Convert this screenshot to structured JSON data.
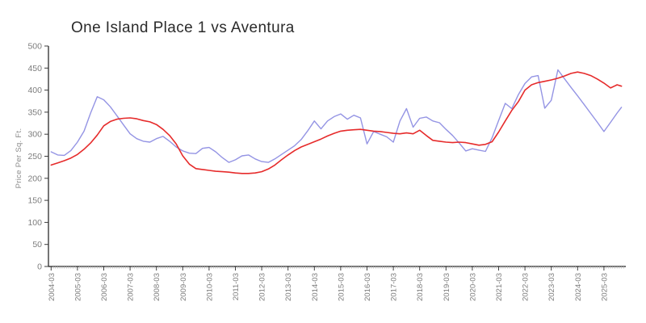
{
  "colors": {
    "series_blue": "#9494e4",
    "series_red": "#e62b2b",
    "axis": "#1a1a1a",
    "tick_major": "#3c3c3c",
    "tick_minor": "#bcbcbc",
    "tick_label": "#7d7d7d",
    "title_text": "#2b2b2b"
  },
  "y_axis": {
    "label": "Price Per Sq. Ft.",
    "ticks": [
      0,
      50,
      100,
      150,
      200,
      250,
      300,
      350,
      400,
      450,
      500
    ],
    "min": 0,
    "max": 500
  },
  "x_axis": {
    "tick_labels": [
      "2004-03",
      "2005-03",
      "2006-03",
      "2007-03",
      "2008-03",
      "2009-03",
      "2010-03",
      "2011-03",
      "2012-03",
      "2013-03",
      "2014-03",
      "2015-03",
      "2016-03",
      "2017-03",
      "2018-03",
      "2019-03",
      "2020-03",
      "2021-03",
      "2022-03",
      "2023-03",
      "2024-03",
      "2025-03"
    ],
    "minor_tick_interval": "month"
  },
  "chart_data": {
    "type": "line",
    "title": "One Island Place 1 vs Aventura",
    "xlabel": "",
    "ylabel": "Price Per Sq. Ft.",
    "ylim": [
      0,
      500
    ],
    "grid": false,
    "legend": "none",
    "x": [
      "2004-03",
      "2004-06",
      "2004-09",
      "2004-12",
      "2005-03",
      "2005-06",
      "2005-09",
      "2005-12",
      "2006-03",
      "2006-06",
      "2006-09",
      "2006-12",
      "2007-03",
      "2007-06",
      "2007-09",
      "2007-12",
      "2008-03",
      "2008-06",
      "2008-09",
      "2008-12",
      "2009-03",
      "2009-06",
      "2009-09",
      "2009-12",
      "2010-03",
      "2010-06",
      "2010-09",
      "2010-12",
      "2011-03",
      "2011-06",
      "2011-09",
      "2011-12",
      "2012-03",
      "2012-06",
      "2012-09",
      "2012-12",
      "2013-03",
      "2013-06",
      "2013-09",
      "2013-12",
      "2014-03",
      "2014-06",
      "2014-09",
      "2014-12",
      "2015-03",
      "2015-06",
      "2015-09",
      "2015-12",
      "2016-03",
      "2016-06",
      "2016-09",
      "2016-12",
      "2017-03",
      "2017-06",
      "2017-09",
      "2017-12",
      "2018-03",
      "2018-06",
      "2018-09",
      "2018-12",
      "2019-03",
      "2019-06",
      "2019-09",
      "2019-12",
      "2020-03",
      "2020-06",
      "2020-09",
      "2020-12",
      "2021-03",
      "2021-06",
      "2021-09",
      "2021-12",
      "2022-03",
      "2022-06",
      "2022-09",
      "2022-12",
      "2023-03",
      "2023-06",
      "2023-09",
      "2023-12",
      "2024-03",
      "2024-06",
      "2024-09",
      "2024-12",
      "2025-03",
      "2025-06",
      "2025-09",
      "2025-11"
    ],
    "series": [
      {
        "name": "One Island Place 1",
        "color": "#9494e4",
        "width": 1.4,
        "values": [
          260,
          253,
          252,
          263,
          282,
          307,
          348,
          385,
          378,
          362,
          342,
          321,
          301,
          290,
          284,
          282,
          290,
          295,
          284,
          271,
          262,
          257,
          256,
          268,
          270,
          260,
          247,
          236,
          242,
          251,
          253,
          244,
          238,
          236,
          244,
          254,
          264,
          274,
          288,
          308,
          330,
          312,
          330,
          340,
          346,
          334,
          343,
          337,
          278,
          306,
          300,
          294,
          282,
          330,
          358,
          316,
          336,
          339,
          330,
          326,
          311,
          297,
          280,
          262,
          267,
          264,
          261,
          292,
          331,
          370,
          358,
          390,
          415,
          430,
          433,
          359,
          377,
          446,
          426,
          406,
          387,
          367,
          347,
          327,
          306,
          327,
          348,
          361
        ]
      },
      {
        "name": "Aventura",
        "color": "#e62b2b",
        "width": 1.6,
        "values": [
          230,
          235,
          240,
          246,
          254,
          266,
          280,
          298,
          319,
          329,
          334,
          336,
          337,
          335,
          331,
          328,
          322,
          311,
          297,
          278,
          251,
          232,
          222,
          220,
          218,
          216,
          215,
          214,
          212,
          211,
          211,
          212,
          215,
          221,
          230,
          242,
          253,
          263,
          271,
          277,
          283,
          289,
          296,
          302,
          307,
          309,
          310,
          311,
          309,
          307,
          306,
          304,
          302,
          301,
          303,
          301,
          309,
          297,
          286,
          284,
          282,
          281,
          282,
          281,
          278,
          275,
          277,
          283,
          305,
          330,
          354,
          374,
          400,
          412,
          417,
          420,
          423,
          427,
          432,
          438,
          441,
          438,
          433,
          425,
          416,
          405,
          412,
          409
        ]
      }
    ]
  }
}
